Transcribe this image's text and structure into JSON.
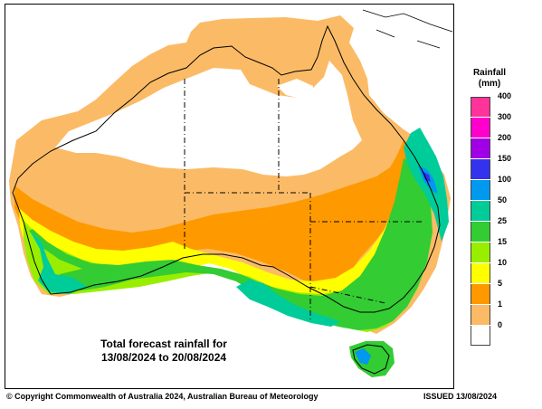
{
  "map": {
    "title_line1": "Total forecast rainfall for",
    "title_line2": "13/08/2024 to 20/08/2024"
  },
  "legend": {
    "title_line1": "Rainfall",
    "title_line2": "(mm)",
    "bins": [
      {
        "label": "400",
        "color": "#ff3399"
      },
      {
        "label": "300",
        "color": "#ff00cc"
      },
      {
        "label": "200",
        "color": "#a100e6"
      },
      {
        "label": "150",
        "color": "#3333ee"
      },
      {
        "label": "100",
        "color": "#0099ee"
      },
      {
        "label": "50",
        "color": "#00cc99"
      },
      {
        "label": "25",
        "color": "#33cc33"
      },
      {
        "label": "15",
        "color": "#99ee00"
      },
      {
        "label": "10",
        "color": "#ffff00"
      },
      {
        "label": "5",
        "color": "#ff9900"
      },
      {
        "label": "1",
        "color": "#fbbb66"
      },
      {
        "label": "0",
        "color": "#ffffff"
      }
    ]
  },
  "footer": {
    "copyright": "© Copyright Commonwealth of Australia 2024, Australian Bureau of Meteorology",
    "issued": "ISSUED 13/08/2024"
  }
}
